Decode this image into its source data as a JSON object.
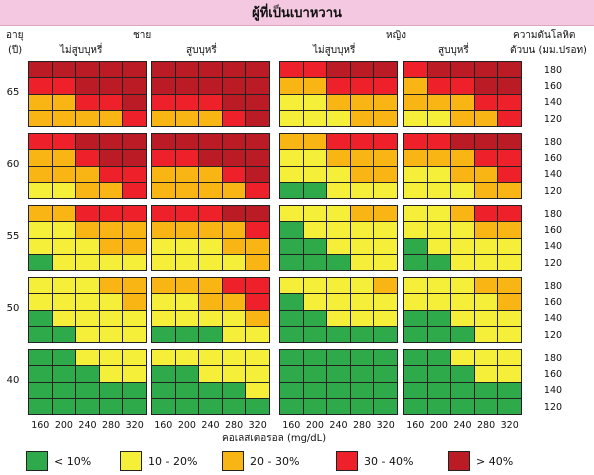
{
  "title": "ผู้ที่เป็นเบาหวาน",
  "header": {
    "age_label": "อายุ",
    "age_unit": "(ปี)",
    "male": "ชาย",
    "female": "หญิง",
    "non_smoker": "ไม่สูบบุหรี่",
    "smoker": "สูบบุหรี่",
    "bp_label_1": "ความดันโลหิต",
    "bp_label_2": "ตัวบน (มม.ปรอท)"
  },
  "ages": [
    "65",
    "60",
    "55",
    "50",
    "40"
  ],
  "bp_values": [
    "180",
    "160",
    "140",
    "120"
  ],
  "cholesterol_values": [
    "160",
    "200",
    "240",
    "280",
    "320"
  ],
  "x_axis_label": "คอเลสเตอรอล (mg/dL)",
  "colors": {
    "1": "#2eaa4a",
    "2": "#f5ef3a",
    "3": "#f8b514",
    "4": "#ee2029",
    "5": "#bb1b25"
  },
  "legend": [
    {
      "level": "1",
      "label": "< 10%"
    },
    {
      "level": "2",
      "label": "10 - 20%"
    },
    {
      "level": "3",
      "label": "20 - 30%"
    },
    {
      "level": "4",
      "label": "30 - 40%"
    },
    {
      "level": "5",
      "label": "> 40%"
    }
  ],
  "grids": [
    [
      [
        "55555",
        "44555",
        "33445",
        "33334"
      ],
      [
        "55555",
        "55555",
        "44455",
        "33345"
      ],
      [
        "44555",
        "33444",
        "22333",
        "22233"
      ],
      [
        "45555",
        "34455",
        "33344",
        "22334"
      ]
    ],
    [
      [
        "44555",
        "33455",
        "33344",
        "22334"
      ],
      [
        "55555",
        "44555",
        "33345",
        "33334"
      ],
      [
        "33444",
        "22333",
        "22233",
        "11222"
      ],
      [
        "44555",
        "33344",
        "22334",
        "22233"
      ]
    ],
    [
      [
        "33444",
        "22333",
        "22233",
        "12222"
      ],
      [
        "44455",
        "33334",
        "22233",
        "22223"
      ],
      [
        "22233",
        "12222",
        "11222",
        "11122"
      ],
      [
        "22344",
        "22233",
        "12222",
        "11222"
      ]
    ],
    [
      [
        "22233",
        "22223",
        "12222",
        "11222"
      ],
      [
        "33344",
        "22334",
        "22223",
        "11122"
      ],
      [
        "22223",
        "12222",
        "11222",
        "11111"
      ],
      [
        "22233",
        "22223",
        "11222",
        "11122"
      ]
    ],
    [
      [
        "11222",
        "11122",
        "11111",
        "11111"
      ],
      [
        "22222",
        "11222",
        "11112",
        "11111"
      ],
      [
        "11111",
        "11111",
        "11111",
        "11111"
      ],
      [
        "11222",
        "11122",
        "11111",
        "11111"
      ]
    ]
  ]
}
